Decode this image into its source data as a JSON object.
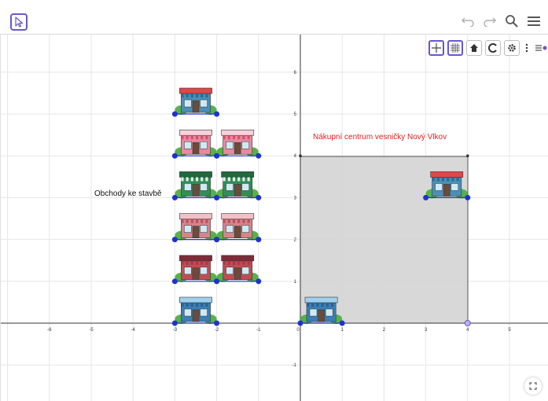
{
  "toolbar": {
    "move_tool_icon": "cursor-arrow-icon",
    "undo_icon": "undo-icon",
    "redo_icon": "redo-icon",
    "search_icon": "search-icon",
    "menu_icon": "hamburger-menu-icon"
  },
  "style_bar": {
    "buttons": [
      "axes-toggle-icon",
      "grid-toggle-icon",
      "home-icon",
      "label-toggle-icon",
      "settings-gear-icon"
    ],
    "more_icon": "more-vertical-icon",
    "close_icon": "style-bar-toggle-icon"
  },
  "axes": {
    "x_ticks": [
      "-6",
      "-5",
      "-4",
      "-3",
      "-2",
      "-1",
      "0",
      "1",
      "2",
      "3",
      "4",
      "5"
    ],
    "y_ticks": [
      "-1",
      "1",
      "2",
      "3",
      "4",
      "5",
      "6"
    ]
  },
  "labels": {
    "shops_to_build": "Obchody ke stavbě",
    "center_title": "Nákupní centrum vesničky Nový Vlkov"
  },
  "colors": {
    "accent": "#6557d2",
    "title_red": "#e02020",
    "point_blue": "#1f33c9",
    "region_gray": "#d4d4d4"
  },
  "fullscreen_icon": "fullscreen-icon"
}
